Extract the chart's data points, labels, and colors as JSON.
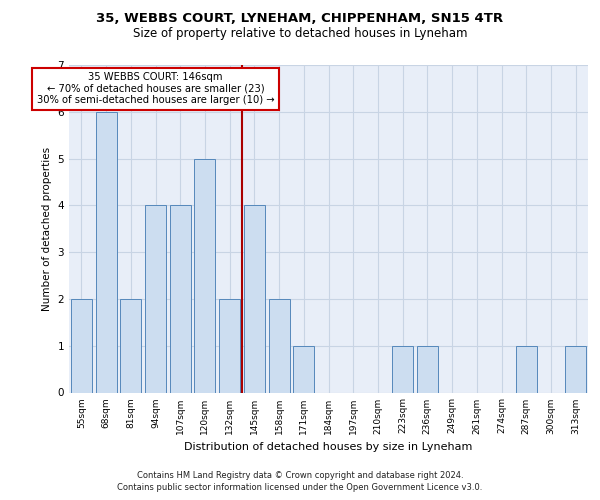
{
  "title1": "35, WEBBS COURT, LYNEHAM, CHIPPENHAM, SN15 4TR",
  "title2": "Size of property relative to detached houses in Lyneham",
  "xlabel": "Distribution of detached houses by size in Lyneham",
  "ylabel": "Number of detached properties",
  "categories": [
    "55sqm",
    "68sqm",
    "81sqm",
    "94sqm",
    "107sqm",
    "120sqm",
    "132sqm",
    "145sqm",
    "158sqm",
    "171sqm",
    "184sqm",
    "197sqm",
    "210sqm",
    "223sqm",
    "236sqm",
    "249sqm",
    "261sqm",
    "274sqm",
    "287sqm",
    "300sqm",
    "313sqm"
  ],
  "values": [
    2,
    6,
    2,
    4,
    4,
    5,
    2,
    4,
    2,
    1,
    0,
    0,
    0,
    1,
    1,
    0,
    0,
    0,
    1,
    0,
    1
  ],
  "bar_color": "#ccddf0",
  "bar_edge_color": "#5588bb",
  "vline_color": "#aa0000",
  "grid_color": "#c8d4e4",
  "background_color": "#e8eef8",
  "ann_text1": "35 WEBBS COURT: 146sqm",
  "ann_text2": "← 70% of detached houses are smaller (23)",
  "ann_text3": "30% of semi-detached houses are larger (10) →",
  "ann_border": "#cc0000",
  "footer1": "Contains HM Land Registry data © Crown copyright and database right 2024.",
  "footer2": "Contains public sector information licensed under the Open Government Licence v3.0.",
  "ylim": [
    0,
    7
  ],
  "yticks": [
    0,
    1,
    2,
    3,
    4,
    5,
    6,
    7
  ],
  "vline_idx": 7
}
